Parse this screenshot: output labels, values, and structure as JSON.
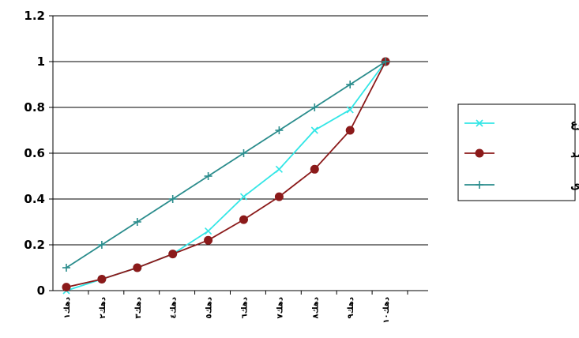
{
  "chart_data": {
    "type": "line",
    "title": "",
    "xlabel": "",
    "ylabel": "",
    "ylim": [
      0,
      1.2
    ],
    "y_ticks": [
      "0",
      "0.2",
      "0.4",
      "0.6",
      "0.8",
      "1",
      "1.2"
    ],
    "categories": [
      "دهك١",
      "دهك٢",
      "دهك٣",
      "دهك٤",
      "دهك٥",
      "دهك٦",
      "دهك٧",
      "دهك٨",
      "دهك٩",
      "دهك١٠"
    ],
    "grid": true,
    "legend_position": "right",
    "series": [
      {
        "name": "مجموع",
        "color": "#33e6e6",
        "marker": "x",
        "x": [
          0,
          1,
          2,
          3,
          4,
          5,
          6,
          7,
          8,
          9
        ],
        "values": [
          0.0,
          0.05,
          0.1,
          0.16,
          0.26,
          0.41,
          0.53,
          0.7,
          0.79,
          1.0
        ]
      },
      {
        "name": "درآمد",
        "color": "#8b1a1a",
        "marker": "circle",
        "x": [
          0,
          1,
          2,
          3,
          4,
          5,
          6,
          7,
          8,
          9
        ],
        "values": [
          0.015,
          0.05,
          0.1,
          0.16,
          0.22,
          0.31,
          0.41,
          0.53,
          0.7,
          1.0
        ]
      },
      {
        "name": "خط قطری",
        "color": "#2a8c8c",
        "marker": "plus",
        "x": [
          0,
          1,
          2,
          3,
          4,
          5,
          6,
          7,
          8,
          9
        ],
        "values": [
          0.1,
          0.2,
          0.3,
          0.4,
          0.5,
          0.6,
          0.7,
          0.8,
          0.9,
          1.0
        ]
      }
    ]
  }
}
